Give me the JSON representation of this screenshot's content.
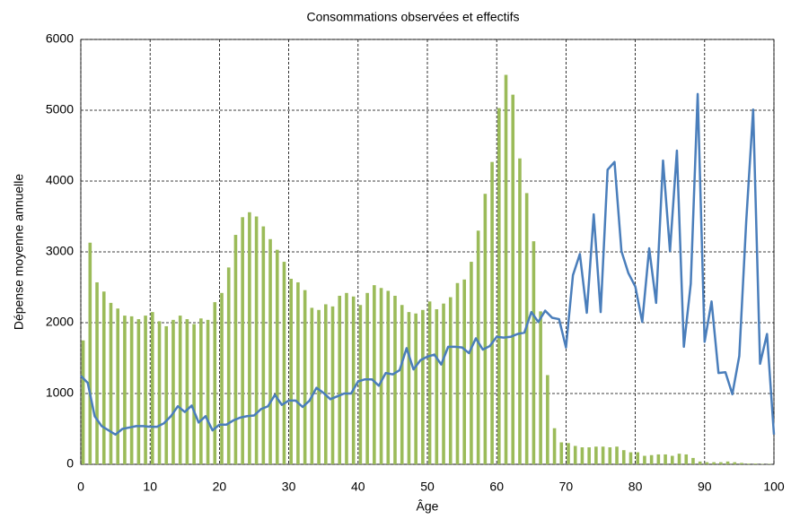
{
  "chart_data": {
    "type": "bar-line",
    "title": "Consommations observées et effectifs",
    "x_label": "Âge",
    "y_label": "Dépense moyenne annuelle",
    "xlim": [
      0,
      100
    ],
    "xticks": [
      0,
      10,
      20,
      30,
      40,
      50,
      60,
      70,
      80,
      90,
      100
    ],
    "ylim": [
      0,
      6000
    ],
    "yticks": [
      0,
      1000,
      2000,
      3000,
      4000,
      5000,
      6000
    ],
    "grid": true,
    "series": [
      {
        "type": "bar",
        "color": "#9bbb59",
        "values": [
          1750,
          3130,
          2570,
          2440,
          2280,
          2200,
          2100,
          2090,
          2050,
          2100,
          2150,
          2020,
          1950,
          2040,
          2100,
          2050,
          1980,
          2060,
          2040,
          2290,
          2420,
          2780,
          3240,
          3490,
          3560,
          3500,
          3360,
          3180,
          3030,
          2860,
          2620,
          2570,
          2460,
          2210,
          2180,
          2260,
          2230,
          2380,
          2420,
          2370,
          2250,
          2420,
          2530,
          2490,
          2450,
          2380,
          2250,
          2150,
          2130,
          2180,
          2300,
          2190,
          2270,
          2360,
          2560,
          2610,
          2860,
          3300,
          3820,
          4270,
          5030,
          5500,
          5220,
          4320,
          3830,
          3150,
          2160,
          1260,
          510,
          310,
          300,
          260,
          240,
          240,
          250,
          250,
          240,
          250,
          200,
          170,
          170,
          120,
          130,
          140,
          140,
          120,
          150,
          140,
          90,
          40,
          30,
          30,
          30,
          40,
          30,
          20,
          10,
          10,
          5,
          5,
          0
        ]
      },
      {
        "type": "line",
        "color": "#4a7ebb",
        "values": [
          1250,
          1150,
          680,
          540,
          480,
          420,
          500,
          520,
          540,
          540,
          530,
          530,
          580,
          680,
          820,
          740,
          830,
          590,
          680,
          480,
          560,
          560,
          620,
          660,
          680,
          690,
          780,
          820,
          980,
          840,
          900,
          900,
          810,
          900,
          1080,
          1010,
          920,
          960,
          1000,
          1000,
          1170,
          1200,
          1200,
          1110,
          1290,
          1270,
          1330,
          1640,
          1340,
          1470,
          1520,
          1550,
          1410,
          1660,
          1660,
          1650,
          1570,
          1780,
          1620,
          1670,
          1800,
          1790,
          1800,
          1840,
          1860,
          2150,
          2010,
          2170,
          2070,
          2050,
          1650,
          2670,
          2970,
          2140,
          3530,
          2150,
          4160,
          4270,
          3010,
          2700,
          2510,
          2010,
          3050,
          2280,
          4290,
          3010,
          4430,
          1660,
          2550,
          5230,
          1730,
          2300,
          1290,
          1300,
          990,
          1530,
          3430,
          5010,
          1420,
          1840,
          420
        ]
      }
    ]
  }
}
